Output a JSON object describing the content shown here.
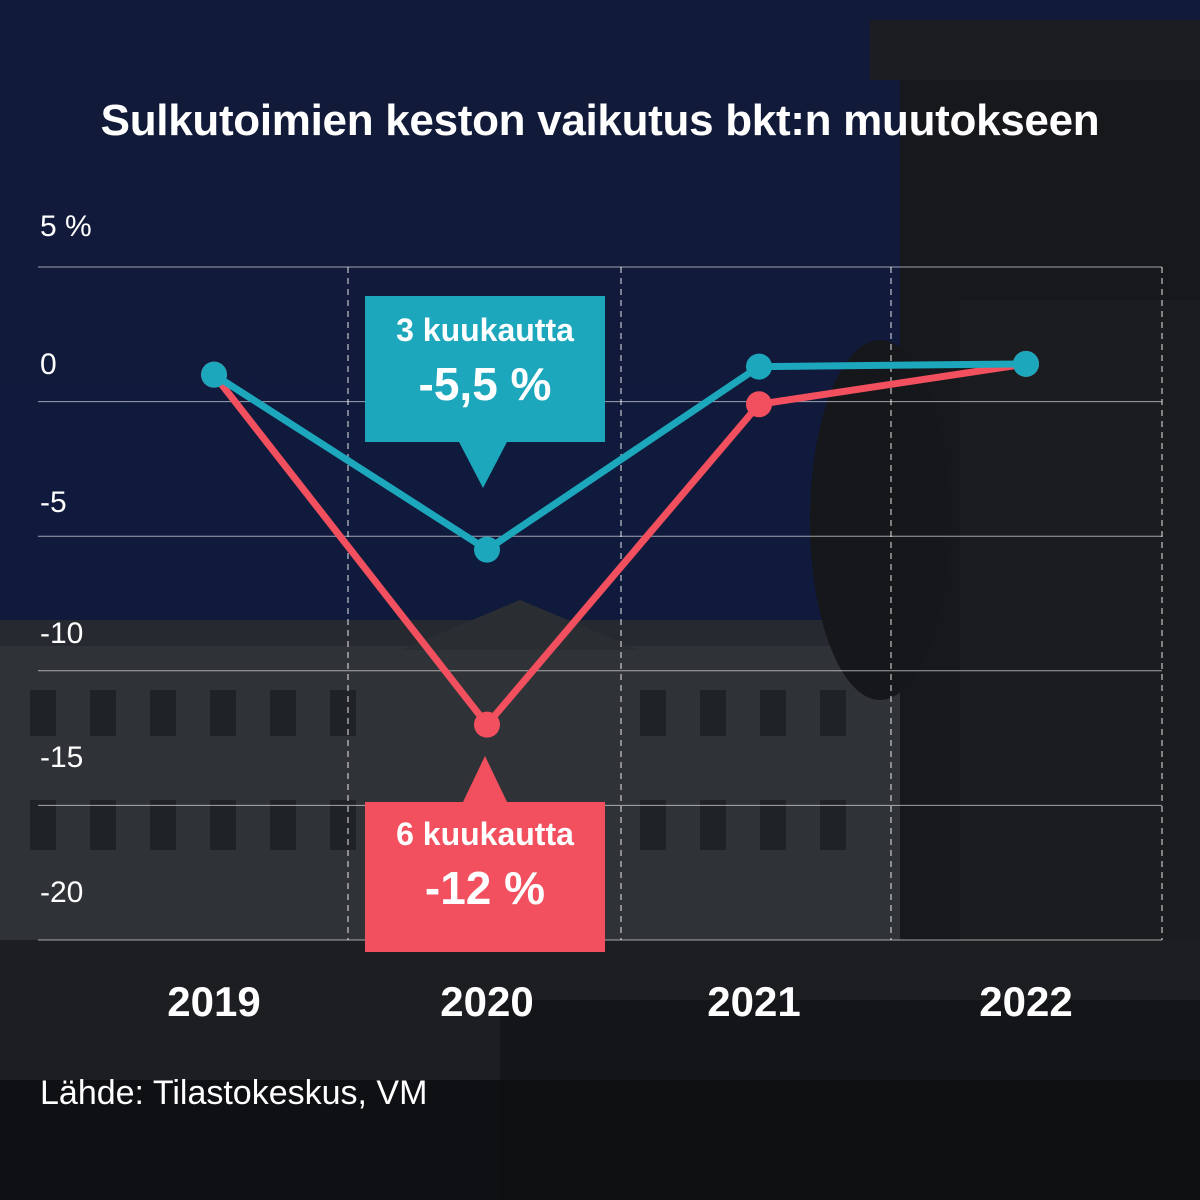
{
  "title": "Sulkutoimien keston vaikutus bkt:n muutokseen",
  "source": "Lähde: Tilastokeskus, VM",
  "colors": {
    "teal": "#1ca7bd",
    "red": "#f2505e",
    "background": "#0f1733",
    "grid": "#ffffff"
  },
  "callouts": {
    "three_months": {
      "label": "3 kuukautta",
      "value": "-5,5 %"
    },
    "six_months": {
      "label": "6 kuukautta",
      "value": "-12 %"
    }
  },
  "chart_data": {
    "type": "line",
    "title": "Sulkutoimien keston vaikutus bkt:n muutokseen",
    "x": [
      "2019",
      "2020",
      "2021",
      "2022"
    ],
    "series": [
      {
        "name": "3 kuukautta",
        "color": "#1ca7bd",
        "values": [
          1.0,
          -5.5,
          1.3,
          1.4
        ]
      },
      {
        "name": "6 kuukautta",
        "color": "#f2505e",
        "values": [
          1.0,
          -12.0,
          -0.1,
          1.4
        ]
      }
    ],
    "y_ticks": [
      {
        "value": 5,
        "label": "5 %"
      },
      {
        "value": 0,
        "label": "0"
      },
      {
        "value": -5,
        "label": "-5"
      },
      {
        "value": -10,
        "label": "-10"
      },
      {
        "value": -15,
        "label": "-15"
      },
      {
        "value": -20,
        "label": "-20"
      }
    ],
    "ylim": [
      -20,
      5
    ],
    "grid": true
  }
}
